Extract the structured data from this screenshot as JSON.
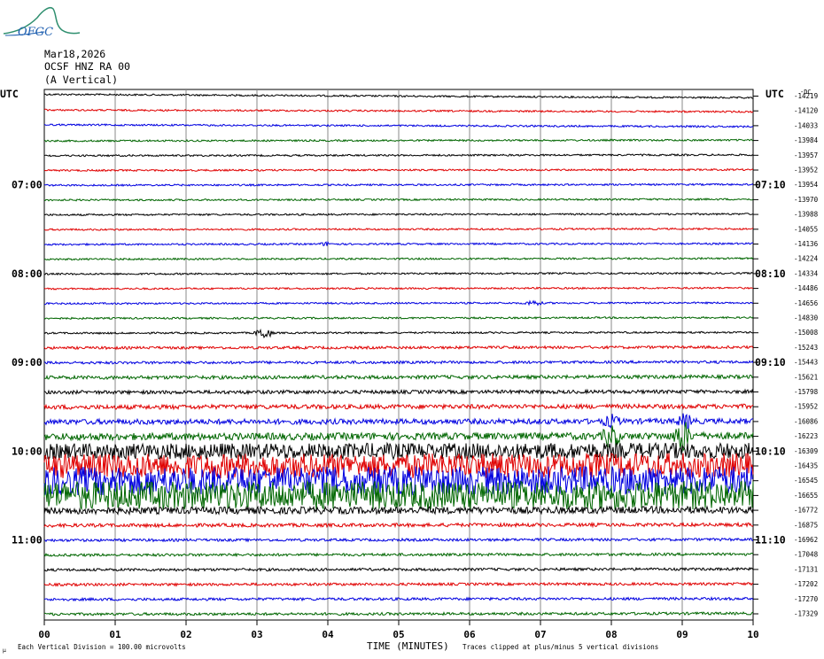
{
  "logo": {
    "text": "OFGC",
    "color": "#2f8f6f"
  },
  "header": {
    "date": "Mar18,2026",
    "station": "OCSF HNZ RA 00",
    "component": "(A Vertical)"
  },
  "labels": {
    "utc_left": "UTC",
    "utc_right": "UTC",
    "dc_header": "-DC",
    "xlabel": "TIME (MINUTES)",
    "footnote_left": "Each Vertical Division = 100.00 microvolts",
    "footnote_right": "Traces clipped at plus/minus 5 vertical divisions",
    "corner_mark": "µ"
  },
  "chart_data": {
    "type": "line",
    "title": "",
    "xlabel": "TIME (MINUTES)",
    "x_ticks": [
      "00",
      "01",
      "02",
      "03",
      "04",
      "05",
      "06",
      "07",
      "08",
      "09",
      "10"
    ],
    "xlim": [
      0,
      10
    ],
    "left_time_labels": [
      {
        "row": 6,
        "label": "07:00"
      },
      {
        "row": 12,
        "label": "08:00"
      },
      {
        "row": 18,
        "label": "09:00"
      },
      {
        "row": 24,
        "label": "10:00"
      },
      {
        "row": 30,
        "label": "11:00"
      }
    ],
    "right_time_labels": [
      {
        "row": 6,
        "label": "07:10"
      },
      {
        "row": 12,
        "label": "08:10"
      },
      {
        "row": 18,
        "label": "09:10"
      },
      {
        "row": 24,
        "label": "10:10"
      },
      {
        "row": 30,
        "label": "11:10"
      }
    ],
    "dc_offsets": [
      "-14219",
      "-14120",
      "-14033",
      "-13984",
      "-13957",
      "-13952",
      "-13954",
      "-13970",
      "-13988",
      "-14055",
      "-14136",
      "-14224",
      "-14334",
      "-14486",
      "-14656",
      "-14830",
      "-15008",
      "-15243",
      "-15443",
      "-15621",
      "-15798",
      "-15952",
      "-16086",
      "-16223",
      "-16309",
      "-16435",
      "-16545",
      "-16655",
      "-16772",
      "-16875",
      "-16962",
      "-17048",
      "-17131",
      "-17202",
      "-17270",
      "-17329"
    ],
    "trace_colors": [
      "#000000",
      "#e00000",
      "#0000e0",
      "#006600"
    ],
    "amplitude": [
      1,
      1,
      1,
      1,
      1,
      1,
      1,
      1,
      1,
      1,
      1,
      1,
      1,
      1,
      1,
      1,
      1,
      1.5,
      1.5,
      2,
      2,
      2.5,
      3,
      4,
      9,
      14,
      16,
      16,
      4,
      2,
      1.5,
      1.5,
      1.5,
      1.5,
      1.5,
      1.5
    ],
    "events": [
      {
        "row": 10,
        "minute": 4.0,
        "size": 2
      },
      {
        "row": 14,
        "minute": 6.9,
        "size": 3
      },
      {
        "row": 16,
        "minute": 3.1,
        "size": 7
      },
      {
        "row": 22,
        "minute": 8.0,
        "size": 6
      },
      {
        "row": 22,
        "minute": 9.05,
        "size": 8
      },
      {
        "row": 23,
        "minute": 8.0,
        "size": 14
      },
      {
        "row": 23,
        "minute": 9.0,
        "size": 18
      }
    ],
    "grid": true,
    "unit_per_division": "100.00 microvolts"
  }
}
